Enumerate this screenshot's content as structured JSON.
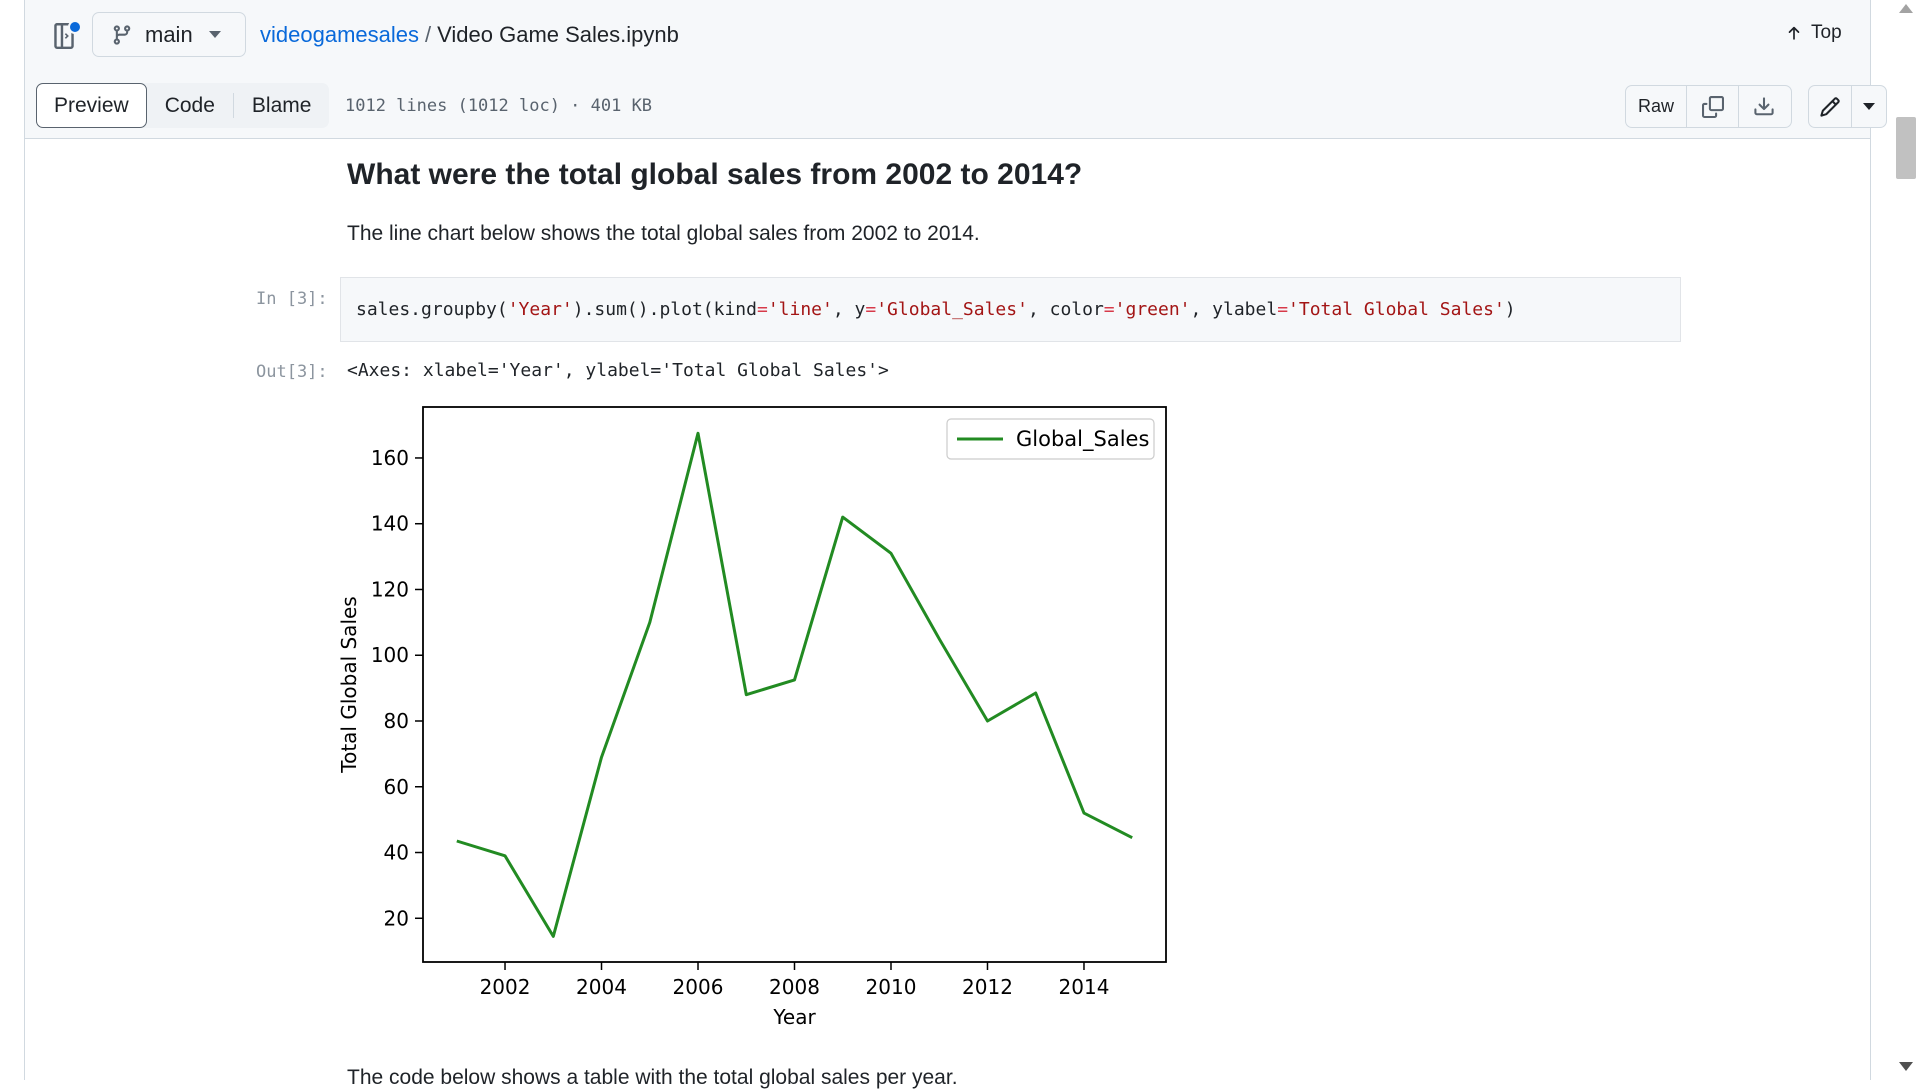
{
  "header": {
    "branch": "main",
    "repo": "videogamesales",
    "separator": "/",
    "file": "Video Game Sales.ipynb",
    "top_label": "Top"
  },
  "filebar": {
    "tabs": [
      "Preview",
      "Code",
      "Blame"
    ],
    "active_tab": "Preview",
    "info": "1012 lines (1012 loc) · 401 KB",
    "raw_label": "Raw"
  },
  "notebook": {
    "heading": "What were the total global sales from 2002 to 2014?",
    "paragraph": "The line chart below shows the total global sales from 2002 to 2014.",
    "in_prompt": "In [3]:",
    "code": {
      "p1": "sales.groupby(",
      "s1": "'Year'",
      "p2": ").sum().plot(kind",
      "eq": "=",
      "s2": "'line'",
      "p3": ", y",
      "s3": "'Global_Sales'",
      "p4": ", color",
      "s4": "'green'",
      "p5": ", ylabel",
      "s5": "'Total Global Sales'",
      "p6": ")"
    },
    "out_prompt": "Out[3]:",
    "output_text": "<Axes: xlabel='Year', ylabel='Total Global Sales'>",
    "trailing_text": "The code below shows a table with the total global sales per year."
  },
  "colors": {
    "link": "#0969da",
    "line": "#228b22",
    "string": "#a31515"
  },
  "chart_data": {
    "type": "line",
    "title": "",
    "xlabel": "Year",
    "ylabel": "Total Global Sales",
    "x": [
      2001,
      2002,
      2003,
      2004,
      2005,
      2006,
      2007,
      2008,
      2009,
      2010,
      2011,
      2012,
      2013,
      2014,
      2015
    ],
    "series": [
      {
        "name": "Global_Sales",
        "values": [
          43.5,
          39,
          14.5,
          69,
          110,
          167.5,
          88,
          92.5,
          142,
          131,
          105,
          80,
          88.5,
          52,
          44.5
        ]
      }
    ],
    "xlim": [
      2000.3,
      2015.7
    ],
    "ylim": [
      6.7,
      175.5
    ],
    "xticks": [
      2002,
      2004,
      2006,
      2008,
      2010,
      2012,
      2014
    ],
    "yticks": [
      20,
      40,
      60,
      80,
      100,
      120,
      140,
      160
    ],
    "legend": "top-right",
    "grid": false
  }
}
